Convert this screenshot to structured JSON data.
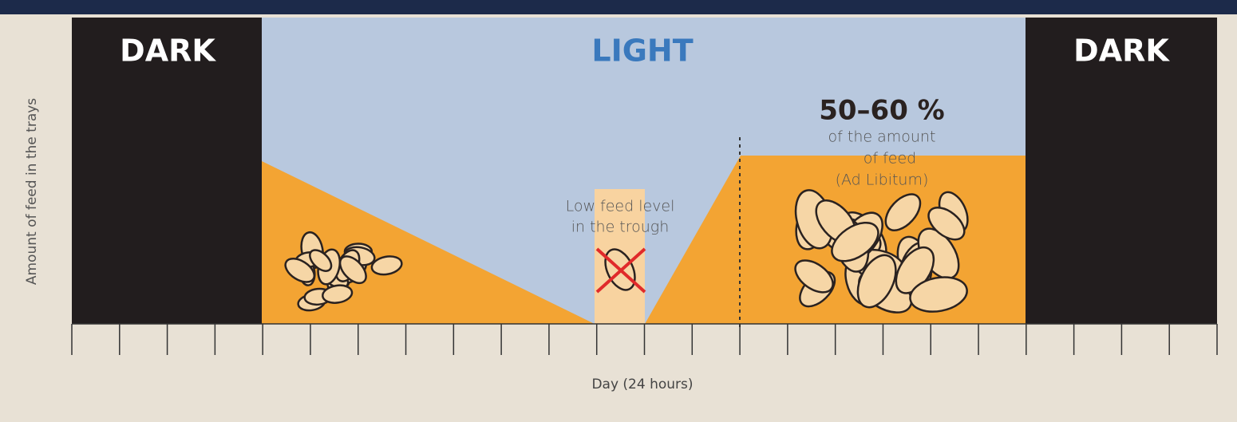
{
  "diagram": {
    "dark_left": "DARK",
    "light": "LIGHT",
    "dark_right": "DARK",
    "amount_title": "50–60 %",
    "amount_note": [
      "of the amount",
      "of feed",
      "(Ad Libitum)"
    ],
    "low_note": [
      "Low feed level",
      "in the trough"
    ],
    "y_axis_label": "Amount of feed in the trays",
    "x_axis_label": "Day (24 hours)"
  }
}
